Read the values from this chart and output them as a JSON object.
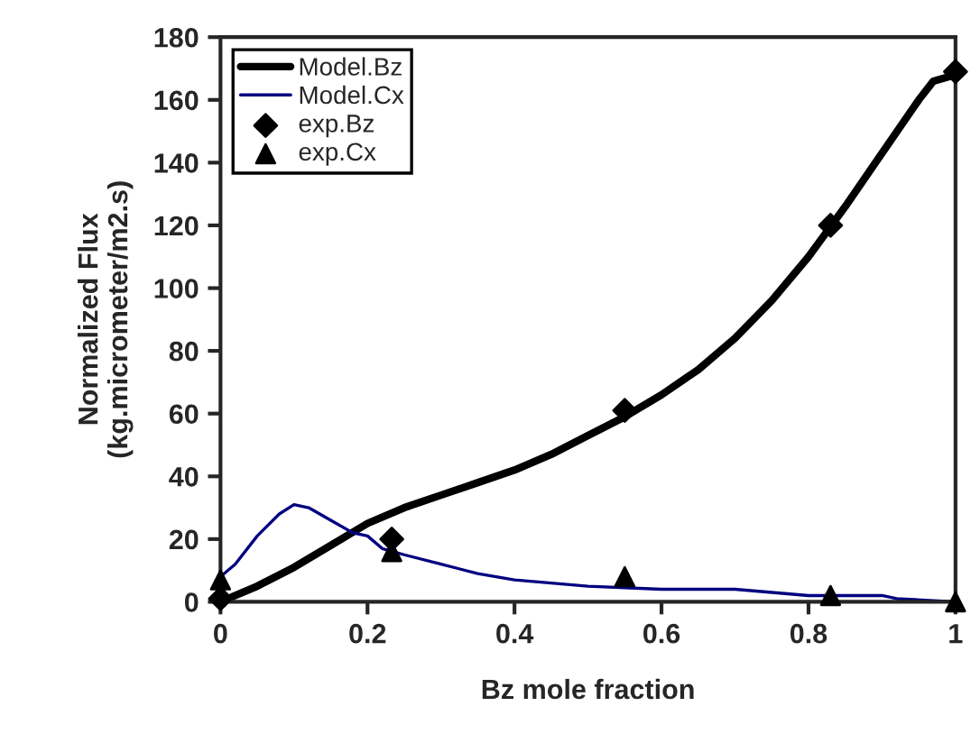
{
  "chart_data": {
    "type": "line",
    "xlabel": "Bz mole fraction",
    "ylabel": "Normalized Flux\n(kg.micrometer/m2.s)",
    "xlim": [
      0,
      1
    ],
    "xticks": [
      0,
      0.2,
      0.4,
      0.6,
      0.8,
      1
    ],
    "ylim": [
      0,
      180
    ],
    "yticks": [
      0,
      20,
      40,
      60,
      80,
      100,
      120,
      140,
      160,
      180
    ],
    "grid": false,
    "legend": "top left",
    "series": [
      {
        "name": "Model.Bz",
        "color": "#000000",
        "marker": "none",
        "x": [
          0,
          0.05,
          0.1,
          0.15,
          0.2,
          0.25,
          0.3,
          0.35,
          0.4,
          0.45,
          0.5,
          0.55,
          0.6,
          0.65,
          0.7,
          0.75,
          0.8,
          0.85,
          0.9,
          0.95,
          0.97,
          1
        ],
        "values": [
          0,
          5,
          11,
          18,
          25,
          30,
          34,
          38,
          42,
          47,
          53,
          59,
          66,
          74,
          84,
          96,
          110,
          126,
          143,
          160,
          166,
          168
        ]
      },
      {
        "name": "Model.Cx",
        "color": "#000080",
        "marker": "none",
        "x": [
          0,
          0.02,
          0.05,
          0.08,
          0.1,
          0.12,
          0.15,
          0.18,
          0.2,
          0.22,
          0.25,
          0.3,
          0.35,
          0.4,
          0.45,
          0.5,
          0.6,
          0.7,
          0.75,
          0.8,
          0.9,
          0.92,
          1
        ],
        "values": [
          8,
          12,
          21,
          28,
          31,
          30,
          26,
          22,
          21,
          17,
          15,
          12,
          9,
          7,
          6,
          5,
          4,
          4,
          3,
          2,
          2,
          1,
          0
        ]
      },
      {
        "name": "exp.Bz",
        "type": "scatter",
        "color": "#000000",
        "marker": "diamond",
        "x": [
          0,
          0.233,
          0.55,
          0.83,
          1
        ],
        "values": [
          1,
          20,
          61,
          120,
          169
        ]
      },
      {
        "name": "exp.Cx",
        "type": "scatter",
        "color": "#000000",
        "marker": "triangle",
        "x": [
          0,
          0.233,
          0.55,
          0.83,
          1
        ],
        "values": [
          7,
          16,
          8,
          2,
          0
        ]
      }
    ]
  }
}
